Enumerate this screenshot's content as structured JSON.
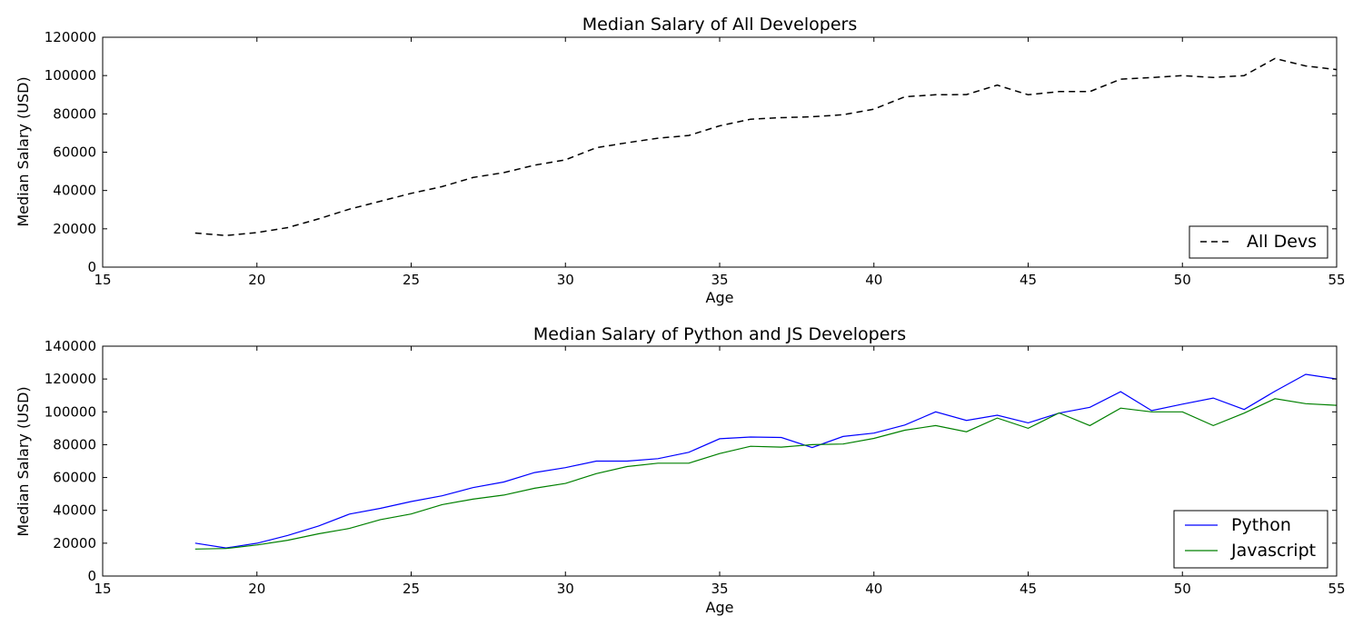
{
  "chart_data": [
    {
      "type": "line",
      "title": "Median Salary of All Developers",
      "xlabel": "Age",
      "ylabel": "Median Salary (USD)",
      "xlim": [
        15,
        55
      ],
      "ylim": [
        0,
        120000
      ],
      "xticks": [
        "15",
        "20",
        "25",
        "30",
        "35",
        "40",
        "45",
        "50",
        "55"
      ],
      "yticks": [
        "0",
        "20000",
        "40000",
        "60000",
        "80000",
        "100000",
        "120000"
      ],
      "grid": false,
      "legend_position": "lower-right",
      "x": [
        18,
        19,
        20,
        21,
        22,
        23,
        24,
        25,
        26,
        27,
        28,
        29,
        30,
        31,
        32,
        33,
        34,
        35,
        36,
        37,
        38,
        39,
        40,
        41,
        42,
        43,
        44,
        45,
        46,
        47,
        48,
        49,
        50,
        51,
        52,
        53,
        54,
        55
      ],
      "series": [
        {
          "name": "All Devs",
          "color": "#000000",
          "dash": "dashed",
          "values": [
            17784,
            16500,
            18012,
            20628,
            25206,
            30252,
            34368,
            38496,
            42000,
            46752,
            49320,
            53200,
            56000,
            62316,
            64928,
            67317,
            68748,
            73752,
            77232,
            78000,
            78508,
            79536,
            82488,
            88935,
            90000,
            90056,
            95000,
            90000,
            91633,
            91660,
            98150,
            98964,
            100000,
            98988,
            100000,
            108923,
            105000,
            103117
          ]
        }
      ]
    },
    {
      "type": "line",
      "title": "Median Salary of Python and JS Developers",
      "xlabel": "Age",
      "ylabel": "Median Salary (USD)",
      "xlim": [
        15,
        55
      ],
      "ylim": [
        0,
        140000
      ],
      "xticks": [
        "15",
        "20",
        "25",
        "30",
        "35",
        "40",
        "45",
        "50",
        "55"
      ],
      "yticks": [
        "0",
        "20000",
        "40000",
        "60000",
        "80000",
        "100000",
        "120000",
        "140000"
      ],
      "grid": false,
      "legend_position": "lower-right",
      "x": [
        18,
        19,
        20,
        21,
        22,
        23,
        24,
        25,
        26,
        27,
        28,
        29,
        30,
        31,
        32,
        33,
        34,
        35,
        36,
        37,
        38,
        39,
        40,
        41,
        42,
        43,
        44,
        45,
        46,
        47,
        48,
        49,
        50,
        51,
        52,
        53,
        54,
        55
      ],
      "series": [
        {
          "name": "Python",
          "color": "#0000ff",
          "dash": "solid",
          "values": [
            20046,
            17100,
            20000,
            24744,
            30500,
            37732,
            41247,
            45372,
            48876,
            53850,
            57287,
            63016,
            65998,
            70003,
            70000,
            71496,
            75370,
            83640,
            84666,
            84392,
            78254,
            85000,
            87038,
            91991,
            100000,
            94796,
            97962,
            93302,
            99240,
            102736,
            112285,
            100771,
            104708,
            108423,
            101407,
            112542,
            122870,
            120000
          ]
        },
        {
          "name": "Javascript",
          "color": "#008000",
          "dash": "solid",
          "values": [
            16446,
            16791,
            18942,
            21780,
            25704,
            29000,
            34372,
            37810,
            43515,
            46823,
            49293,
            53437,
            56373,
            62375,
            66674,
            68745,
            68746,
            74583,
            79000,
            78508,
            79996,
            80403,
            83820,
            88833,
            91660,
            87892,
            96243,
            90000,
            99313,
            91660,
            102264,
            100000,
            100000,
            91660,
            99240,
            108000,
            105000,
            104000
          ]
        }
      ]
    }
  ]
}
